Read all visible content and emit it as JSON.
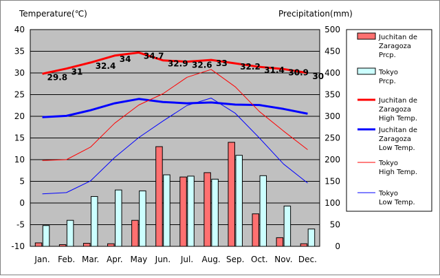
{
  "chart_data": {
    "type": "bar+line",
    "categories": [
      "Jan.",
      "Feb.",
      "Mar.",
      "Apr.",
      "May",
      "Jun.",
      "Jul.",
      "Aug.",
      "Sep.",
      "Oct.",
      "Nov.",
      "Dec."
    ],
    "left_axis": {
      "title": "Temperature(℃)",
      "ylim": [
        -10,
        40
      ],
      "ticks": [
        -10,
        -5,
        0,
        5,
        10,
        15,
        20,
        25,
        30,
        35,
        40
      ]
    },
    "right_axis": {
      "title": "Precipitation(mm)",
      "ylim": [
        0,
        500
      ],
      "ticks": [
        0,
        50,
        100,
        150,
        200,
        250,
        300,
        350,
        400,
        450,
        500
      ]
    },
    "grid": true,
    "legend_position": "right",
    "bar_series": [
      {
        "name": "Juchitan de Zaragoza Prcp.",
        "legend_lines": [
          "Juchitan de",
          "Zaragoza",
          "Prcp."
        ],
        "color": "#ff7070",
        "values": [
          8,
          4,
          7,
          6,
          60,
          230,
          160,
          170,
          240,
          75,
          20,
          6
        ]
      },
      {
        "name": "Tokyo Prcp.",
        "legend_lines": [
          "Tokyo",
          "Prcp."
        ],
        "color": "#ccffff",
        "values": [
          48,
          60,
          115,
          130,
          128,
          165,
          162,
          155,
          210,
          163,
          93,
          40
        ]
      }
    ],
    "line_series": [
      {
        "name": "Juchitan de Zaragoza High Temp.",
        "legend_lines": [
          "Juchitan de",
          "Zaragoza",
          "High Temp."
        ],
        "color": "#ff0000",
        "width": 3,
        "values": [
          29.8,
          31,
          32.4,
          34,
          34.7,
          32.9,
          32.6,
          33,
          32.2,
          31.4,
          30.9,
          30
        ]
      },
      {
        "name": "Juchitan de Zaragoza Low Temp.",
        "legend_lines": [
          "Juchitan de",
          "Zaragoza",
          "Low Temp."
        ],
        "color": "#0000ff",
        "width": 3,
        "values": [
          19.8,
          20.1,
          21.4,
          23,
          24,
          23.3,
          23,
          23.2,
          22.7,
          22.6,
          21.7,
          20.6
        ]
      },
      {
        "name": "Tokyo High Temp.",
        "legend_lines": [
          "Tokyo",
          "High Temp."
        ],
        "color": "#ff0000",
        "width": 1,
        "values": [
          9.8,
          10,
          12.9,
          18.4,
          22.6,
          25.2,
          29,
          30.8,
          26.8,
          21.1,
          16.6,
          12.3
        ]
      },
      {
        "name": "Tokyo Low Temp.",
        "legend_lines": [
          "Tokyo",
          "Low Temp."
        ],
        "color": "#0000ff",
        "width": 1,
        "values": [
          2.1,
          2.4,
          5.1,
          10.5,
          15.1,
          18.9,
          22.5,
          24.2,
          20.7,
          15,
          9,
          4.6
        ]
      }
    ],
    "data_labels": [
      "29.8",
      "31",
      "32.4",
      "34",
      "34.7",
      "32.9",
      "32.6",
      "33",
      "32.2",
      "31.4",
      "30.9",
      "30"
    ]
  }
}
